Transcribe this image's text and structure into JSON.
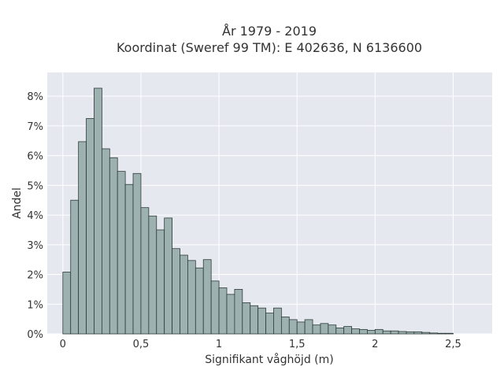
{
  "chart_data": {
    "type": "bar",
    "title_line1": "År 1979 - 2019",
    "title_line2": "Koordinat (Sweref 99 TM): E 402636, N 6136600",
    "xlabel": "Signifikant våghöjd (m)",
    "ylabel": "Andel",
    "bin_width": 0.05,
    "x_start": 0.0,
    "xlim": [
      -0.1,
      2.75
    ],
    "ylim": [
      0,
      8.8
    ],
    "x_ticks": [
      0,
      0.5,
      1,
      1.5,
      2,
      2.5
    ],
    "x_tick_labels": [
      "0",
      "0,5",
      "1",
      "1,5",
      "2",
      "2,5"
    ],
    "y_ticks": [
      0,
      1,
      2,
      3,
      4,
      5,
      6,
      7,
      8
    ],
    "y_tick_labels": [
      "0%",
      "1%",
      "2%",
      "3%",
      "4%",
      "5%",
      "6%",
      "7%",
      "8%"
    ],
    "values": [
      2.08,
      4.5,
      6.47,
      7.25,
      8.27,
      6.23,
      5.93,
      5.47,
      5.03,
      5.4,
      4.25,
      3.97,
      3.5,
      3.9,
      2.87,
      2.65,
      2.47,
      2.22,
      2.5,
      1.78,
      1.55,
      1.33,
      1.5,
      1.05,
      0.95,
      0.87,
      0.7,
      0.87,
      0.57,
      0.48,
      0.4,
      0.48,
      0.3,
      0.35,
      0.3,
      0.2,
      0.25,
      0.17,
      0.15,
      0.12,
      0.15,
      0.1,
      0.1,
      0.08,
      0.07,
      0.07,
      0.05,
      0.03,
      0.02,
      0.02
    ],
    "background_color": "#e5e8ef",
    "bar_color": "#9db2b0",
    "bar_edge_color": "#2d3b3a",
    "grid": true
  }
}
